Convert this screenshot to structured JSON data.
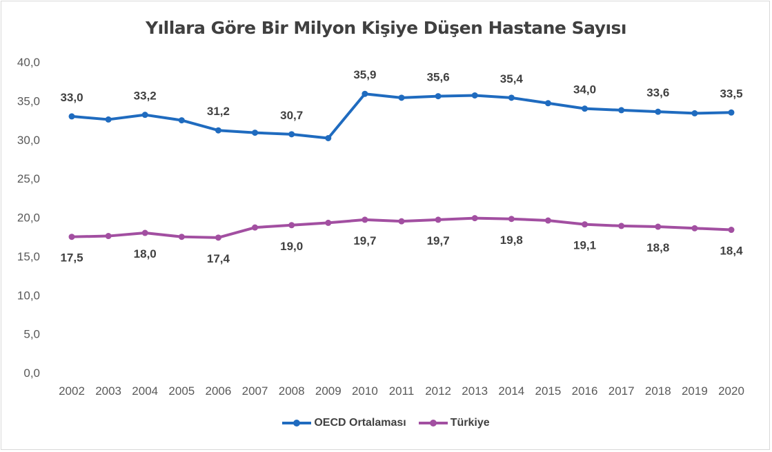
{
  "chart_data": {
    "type": "line",
    "title": "Yıllara Göre Bir Milyon Kişiye Düşen Hastane Sayısı",
    "xlabel": "",
    "ylabel": "",
    "ylim": [
      0,
      40
    ],
    "y_ticks": [
      "0,0",
      "5,0",
      "10,0",
      "15,0",
      "20,0",
      "25,0",
      "30,0",
      "35,0",
      "40,0"
    ],
    "grid": false,
    "legend_position": "bottom",
    "categories": [
      "2002",
      "2003",
      "2004",
      "2005",
      "2006",
      "2007",
      "2008",
      "2009",
      "2010",
      "2011",
      "2012",
      "2013",
      "2014",
      "2015",
      "2016",
      "2017",
      "2018",
      "2019",
      "2020"
    ],
    "series": [
      {
        "name": "OECD Ortalaması",
        "color": "#1f6bbf",
        "label_position": "above",
        "values": [
          33.0,
          32.6,
          33.2,
          32.5,
          31.2,
          30.9,
          30.7,
          30.2,
          35.9,
          35.4,
          35.6,
          35.7,
          35.4,
          34.7,
          34.0,
          33.8,
          33.6,
          33.4,
          33.5
        ],
        "labels": [
          "33,0",
          null,
          "33,2",
          null,
          "31,2",
          null,
          "30,7",
          null,
          "35,9",
          null,
          "35,6",
          null,
          "35,4",
          null,
          "34,0",
          null,
          "33,6",
          null,
          "33,5"
        ]
      },
      {
        "name": "Türkiye",
        "color": "#a24fa1",
        "label_position": "below",
        "values": [
          17.5,
          17.6,
          18.0,
          17.5,
          17.4,
          18.7,
          19.0,
          19.3,
          19.7,
          19.5,
          19.7,
          19.9,
          19.8,
          19.6,
          19.1,
          18.9,
          18.8,
          18.6,
          18.4
        ],
        "labels": [
          "17,5",
          null,
          "18,0",
          null,
          "17,4",
          null,
          "19,0",
          null,
          "19,7",
          null,
          "19,7",
          null,
          "19,8",
          null,
          "19,1",
          null,
          "18,8",
          null,
          "18,4"
        ]
      }
    ]
  }
}
